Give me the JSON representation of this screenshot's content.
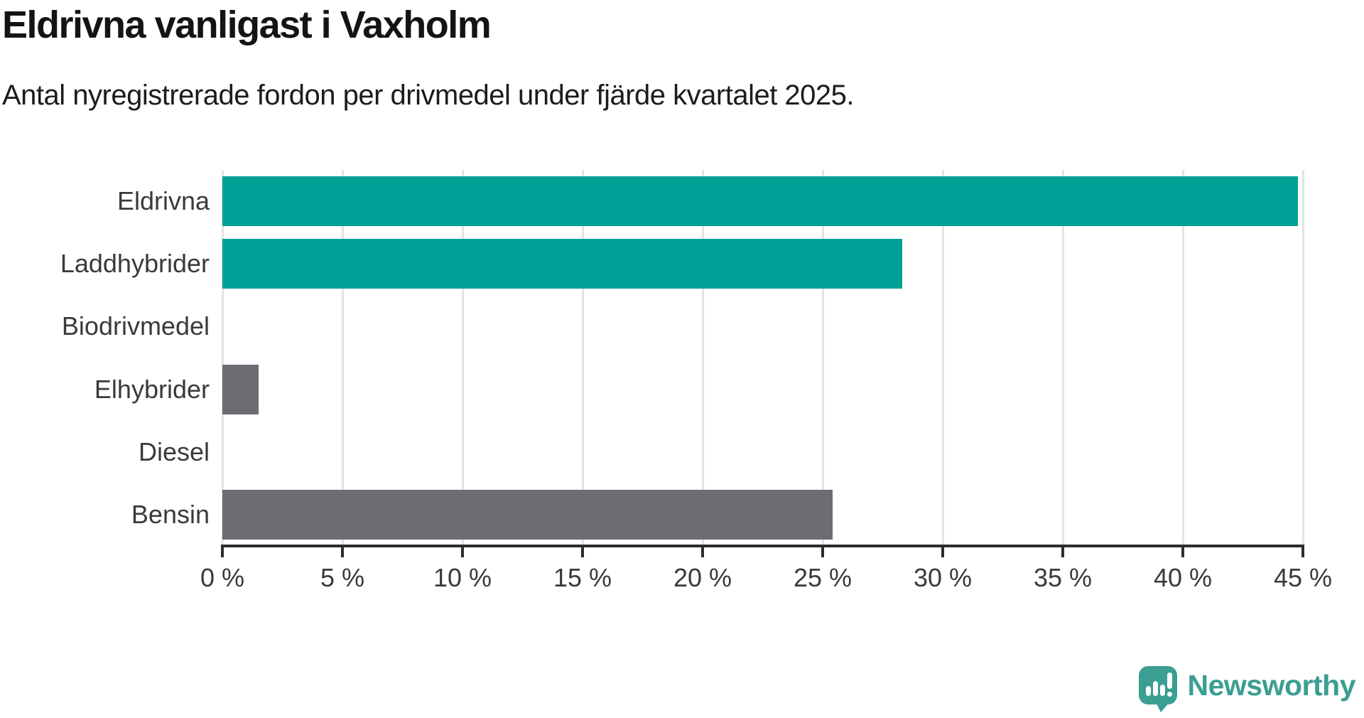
{
  "title": "Eldrivna vanligast i Vaxholm",
  "subtitle": "Antal nyregistrerade fordon per drivmedel under fjärde kvartalet 2025.",
  "colors": {
    "teal_bar": "#00a096",
    "gray_bar": "#6c6c72",
    "gridline": "#e3e3e3",
    "axis": "#2d2d2d",
    "label_text": "#3a3a3a",
    "title_text": "#141414",
    "logo_teal": "#3b9e92"
  },
  "chart_data": {
    "type": "bar",
    "orientation": "horizontal",
    "title": "Eldrivna vanligast i Vaxholm",
    "subtitle": "Antal nyregistrerade fordon per drivmedel under fjärde kvartalet 2025.",
    "categories": [
      "Eldrivna",
      "Laddhybrider",
      "Biodrivmedel",
      "Elhybrider",
      "Diesel",
      "Bensin"
    ],
    "values": [
      44.8,
      28.3,
      0,
      1.5,
      0,
      25.4
    ],
    "bar_colors": [
      "#00a096",
      "#00a096",
      "#00a096",
      "#6c6c72",
      "#6c6c72",
      "#6c6c72"
    ],
    "unit": "%",
    "xlim": [
      0,
      45
    ],
    "tick_step": 5,
    "x_tick_labels": [
      "0 %",
      "5 %",
      "10 %",
      "15 %",
      "20 %",
      "25 %",
      "30 %",
      "35 %",
      "40 %",
      "45 %"
    ],
    "grid": true,
    "legend": "none"
  },
  "logo": {
    "text": "Newsworthy"
  }
}
